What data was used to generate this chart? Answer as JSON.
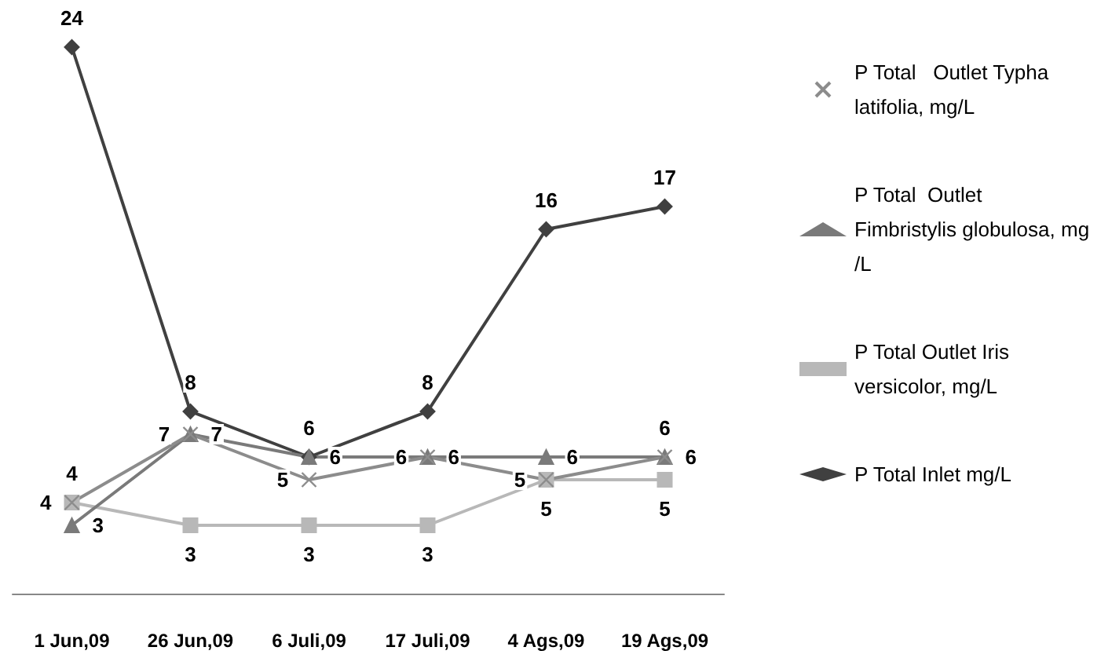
{
  "chart_data": {
    "type": "line",
    "categories": [
      "1 Jun,09",
      "26 Jun,09",
      "6 Juli,09",
      "17 Juli,09",
      "4 Ags,09",
      "19 Ags,09"
    ],
    "series": [
      {
        "name": "P Total Inlet mg/L",
        "color": "#404040",
        "marker": "diamond",
        "values": [
          24,
          8,
          6,
          8,
          16,
          17
        ]
      },
      {
        "name": "P Total Outlet Iris versicolor, mg/L",
        "color": "#b8b8b8",
        "marker": "square",
        "values": [
          4,
          3,
          3,
          3,
          5,
          5
        ]
      },
      {
        "name": "P Total  Outlet Fimbristylis globulosa, mg/L",
        "color": "#7a7a7a",
        "marker": "triangle",
        "values": [
          3,
          7,
          6,
          6,
          6,
          6
        ]
      },
      {
        "name": "P Total   Outlet Typha latifolia, mg/L",
        "color": "#8c8c8c",
        "marker": "cross",
        "values": [
          4,
          7,
          5,
          6,
          5,
          6
        ]
      }
    ],
    "data_labels": true,
    "legend": "right",
    "tick_labels": "x"
  }
}
